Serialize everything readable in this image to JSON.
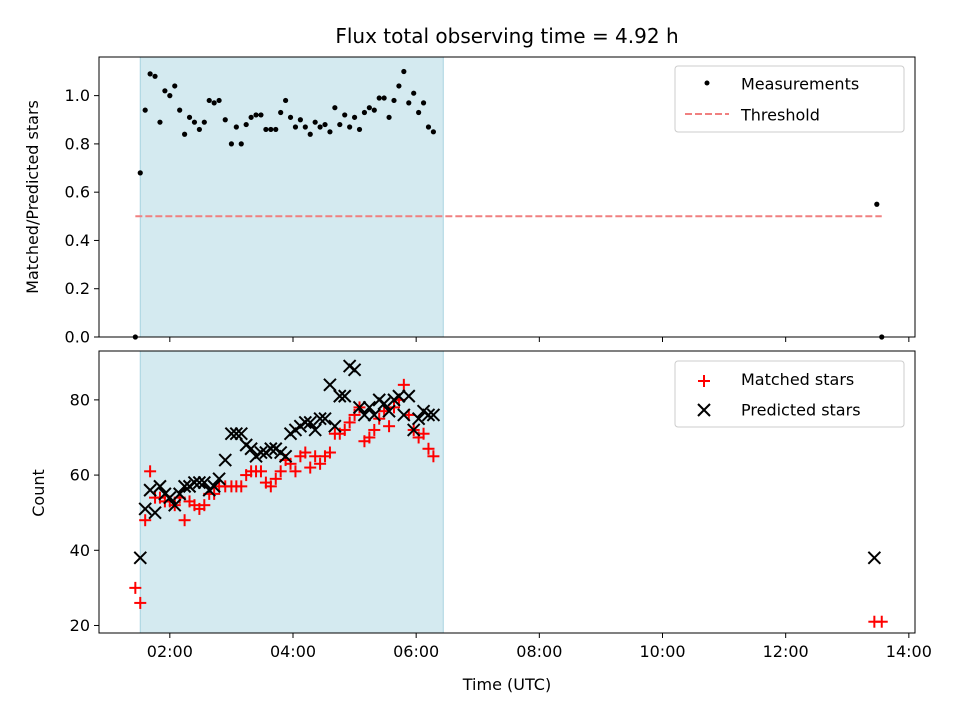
{
  "chart_data": [
    {
      "type": "scatter",
      "title": "Flux total observing time = 4.92 h",
      "xlabel": "",
      "ylabel": "Matched/Predicted stars",
      "xlim": [
        0.85,
        14.1
      ],
      "ylim": [
        0,
        1.16
      ],
      "yticks": [
        0.0,
        0.2,
        0.4,
        0.6,
        0.8,
        1.0
      ],
      "ytick_labels": [
        "0.0",
        "0.2",
        "0.4",
        "0.6",
        "0.8",
        "1.0"
      ],
      "xticks": [
        2,
        4,
        6,
        8,
        10,
        12,
        14
      ],
      "shaded_span": [
        1.52,
        6.44
      ],
      "shaded_color": "#d4eaf0",
      "legend": {
        "position": "top-right",
        "entries": [
          "Measurements",
          "Threshold"
        ]
      },
      "series": [
        {
          "name": "Measurements",
          "marker": "dot",
          "color": "#000000",
          "points": [
            [
              1.44,
              0.0
            ],
            [
              1.52,
              0.68
            ],
            [
              1.6,
              0.94
            ],
            [
              1.68,
              1.09
            ],
            [
              1.76,
              1.08
            ],
            [
              1.84,
              0.89
            ],
            [
              1.92,
              1.02
            ],
            [
              2.0,
              1.0
            ],
            [
              2.08,
              1.04
            ],
            [
              2.16,
              0.94
            ],
            [
              2.24,
              0.84
            ],
            [
              2.32,
              0.91
            ],
            [
              2.4,
              0.89
            ],
            [
              2.48,
              0.86
            ],
            [
              2.56,
              0.89
            ],
            [
              2.64,
              0.98
            ],
            [
              2.72,
              0.97
            ],
            [
              2.8,
              0.98
            ],
            [
              2.9,
              0.9
            ],
            [
              3.0,
              0.8
            ],
            [
              3.08,
              0.87
            ],
            [
              3.16,
              0.8
            ],
            [
              3.24,
              0.88
            ],
            [
              3.32,
              0.91
            ],
            [
              3.4,
              0.92
            ],
            [
              3.48,
              0.92
            ],
            [
              3.56,
              0.86
            ],
            [
              3.64,
              0.86
            ],
            [
              3.72,
              0.86
            ],
            [
              3.8,
              0.93
            ],
            [
              3.88,
              0.98
            ],
            [
              3.96,
              0.91
            ],
            [
              4.04,
              0.87
            ],
            [
              4.12,
              0.9
            ],
            [
              4.2,
              0.87
            ],
            [
              4.28,
              0.84
            ],
            [
              4.36,
              0.89
            ],
            [
              4.44,
              0.87
            ],
            [
              4.52,
              0.88
            ],
            [
              4.6,
              0.85
            ],
            [
              4.68,
              0.95
            ],
            [
              4.76,
              0.88
            ],
            [
              4.84,
              0.92
            ],
            [
              4.92,
              0.87
            ],
            [
              5.0,
              0.91
            ],
            [
              5.08,
              0.86
            ],
            [
              5.16,
              0.93
            ],
            [
              5.24,
              0.95
            ],
            [
              5.32,
              0.94
            ],
            [
              5.4,
              0.99
            ],
            [
              5.48,
              0.99
            ],
            [
              5.56,
              0.91
            ],
            [
              5.64,
              0.98
            ],
            [
              5.72,
              1.04
            ],
            [
              5.8,
              1.1
            ],
            [
              5.88,
              0.97
            ],
            [
              5.96,
              1.01
            ],
            [
              6.04,
              0.93
            ],
            [
              6.12,
              0.97
            ],
            [
              6.2,
              0.87
            ],
            [
              6.28,
              0.85
            ],
            [
              13.48,
              0.55
            ],
            [
              13.56,
              0.0
            ]
          ]
        },
        {
          "name": "Threshold",
          "marker": "dashed-line",
          "color": "#f08080",
          "points": [
            [
              1.44,
              0.5
            ],
            [
              13.56,
              0.5
            ]
          ]
        }
      ]
    },
    {
      "type": "scatter",
      "title": "",
      "xlabel": "Time (UTC)",
      "ylabel": "Count",
      "xlim": [
        0.85,
        14.1
      ],
      "ylim": [
        18,
        93
      ],
      "yticks": [
        20,
        40,
        60,
        80
      ],
      "ytick_labels": [
        "20",
        "40",
        "60",
        "80"
      ],
      "xticks": [
        2,
        4,
        6,
        8,
        10,
        12,
        14
      ],
      "xtick_labels": [
        "02:00",
        "04:00",
        "06:00",
        "08:00",
        "10:00",
        "12:00",
        "14:00"
      ],
      "shaded_span": [
        1.52,
        6.44
      ],
      "shaded_color": "#d4eaf0",
      "legend": {
        "position": "top-right",
        "entries": [
          "Matched stars",
          "Predicted stars"
        ]
      },
      "series": [
        {
          "name": "Matched stars",
          "marker": "plus",
          "color": "#ff0000",
          "points": [
            [
              1.44,
              30
            ],
            [
              1.52,
              26
            ],
            [
              1.6,
              48
            ],
            [
              1.68,
              61
            ],
            [
              1.76,
              54
            ],
            [
              1.84,
              54
            ],
            [
              1.92,
              53
            ],
            [
              2.0,
              53
            ],
            [
              2.08,
              52
            ],
            [
              2.16,
              54
            ],
            [
              2.24,
              48
            ],
            [
              2.32,
              53
            ],
            [
              2.4,
              52
            ],
            [
              2.48,
              51
            ],
            [
              2.56,
              52
            ],
            [
              2.64,
              55
            ],
            [
              2.72,
              55
            ],
            [
              2.8,
              57
            ],
            [
              2.9,
              57
            ],
            [
              3.0,
              57
            ],
            [
              3.08,
              57
            ],
            [
              3.16,
              57
            ],
            [
              3.24,
              60
            ],
            [
              3.32,
              61
            ],
            [
              3.4,
              61
            ],
            [
              3.48,
              61
            ],
            [
              3.56,
              58
            ],
            [
              3.64,
              57
            ],
            [
              3.72,
              59
            ],
            [
              3.8,
              61
            ],
            [
              3.88,
              64
            ],
            [
              3.96,
              63
            ],
            [
              4.04,
              61
            ],
            [
              4.12,
              65
            ],
            [
              4.2,
              66
            ],
            [
              4.28,
              62
            ],
            [
              4.36,
              65
            ],
            [
              4.44,
              63
            ],
            [
              4.52,
              65
            ],
            [
              4.6,
              66
            ],
            [
              4.68,
              71
            ],
            [
              4.76,
              71
            ],
            [
              4.84,
              72
            ],
            [
              4.92,
              74
            ],
            [
              5.0,
              76
            ],
            [
              5.08,
              78
            ],
            [
              5.16,
              69
            ],
            [
              5.24,
              70
            ],
            [
              5.32,
              72
            ],
            [
              5.4,
              75
            ],
            [
              5.48,
              77
            ],
            [
              5.56,
              73
            ],
            [
              5.64,
              78
            ],
            [
              5.72,
              80
            ],
            [
              5.8,
              84
            ],
            [
              5.88,
              76
            ],
            [
              5.96,
              72
            ],
            [
              6.04,
              70
            ],
            [
              6.12,
              71
            ],
            [
              6.2,
              67
            ],
            [
              6.28,
              65
            ],
            [
              13.44,
              21
            ],
            [
              13.56,
              21
            ]
          ]
        },
        {
          "name": "Predicted stars",
          "marker": "x",
          "color": "#000000",
          "points": [
            [
              1.52,
              38
            ],
            [
              1.6,
              51
            ],
            [
              1.68,
              56
            ],
            [
              1.76,
              50
            ],
            [
              1.84,
              57
            ],
            [
              1.92,
              55
            ],
            [
              2.0,
              54
            ],
            [
              2.08,
              52
            ],
            [
              2.16,
              55
            ],
            [
              2.24,
              57
            ],
            [
              2.32,
              57
            ],
            [
              2.4,
              58
            ],
            [
              2.48,
              58
            ],
            [
              2.56,
              58
            ],
            [
              2.64,
              56
            ],
            [
              2.72,
              57
            ],
            [
              2.8,
              59
            ],
            [
              2.9,
              64
            ],
            [
              3.0,
              71
            ],
            [
              3.08,
              71
            ],
            [
              3.16,
              71
            ],
            [
              3.24,
              68
            ],
            [
              3.32,
              67
            ],
            [
              3.4,
              65
            ],
            [
              3.48,
              66
            ],
            [
              3.56,
              66
            ],
            [
              3.64,
              67
            ],
            [
              3.72,
              67
            ],
            [
              3.8,
              66
            ],
            [
              3.88,
              65
            ],
            [
              3.96,
              71
            ],
            [
              4.04,
              72
            ],
            [
              4.12,
              73
            ],
            [
              4.2,
              74
            ],
            [
              4.28,
              74
            ],
            [
              4.36,
              72
            ],
            [
              4.44,
              75
            ],
            [
              4.52,
              75
            ],
            [
              4.6,
              84
            ],
            [
              4.68,
              73
            ],
            [
              4.76,
              81
            ],
            [
              4.84,
              81
            ],
            [
              4.92,
              89
            ],
            [
              5.0,
              88
            ],
            [
              5.08,
              78
            ],
            [
              5.16,
              76
            ],
            [
              5.24,
              78
            ],
            [
              5.32,
              76
            ],
            [
              5.4,
              80
            ],
            [
              5.48,
              79
            ],
            [
              5.56,
              77
            ],
            [
              5.64,
              80
            ],
            [
              5.72,
              81
            ],
            [
              5.8,
              76
            ],
            [
              5.88,
              81
            ],
            [
              5.96,
              72
            ],
            [
              6.04,
              75
            ],
            [
              6.12,
              77
            ],
            [
              6.2,
              76
            ],
            [
              6.28,
              76
            ],
            [
              13.44,
              38
            ]
          ]
        }
      ]
    }
  ]
}
